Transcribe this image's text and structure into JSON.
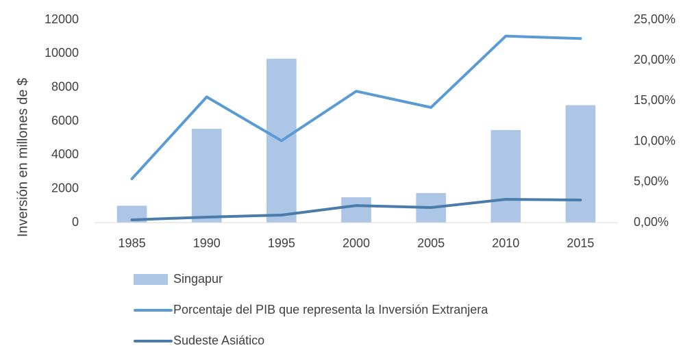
{
  "chart_data": {
    "type": "bar",
    "y_label": "Inversión en millones de $",
    "categories": [
      "1985",
      "1990",
      "1995",
      "2000",
      "2005",
      "2010",
      "2015"
    ],
    "series": [
      {
        "name": "Singapur",
        "type": "bar",
        "axis": "y",
        "color": "#adc6e6",
        "values": [
          1000,
          5550,
          9700,
          1500,
          1750,
          5480,
          6950
        ]
      },
      {
        "name": "Porcentaje del PIB que representa la Inversión Extranjera",
        "type": "line",
        "axis": "y2",
        "color": "#5b9bd5",
        "values": [
          5.4,
          15.5,
          10.1,
          16.2,
          14.2,
          23.0,
          22.7
        ]
      },
      {
        "name": "Sudeste Asiático",
        "type": "line",
        "axis": "y2",
        "color": "#4a7cab",
        "values": [
          0.34,
          0.68,
          0.93,
          2.1,
          1.86,
          2.87,
          2.79
        ]
      }
    ],
    "ylim": [
      0,
      12000
    ],
    "yticks": [
      0,
      2000,
      4000,
      6000,
      8000,
      10000,
      12000
    ],
    "y2lim": [
      0,
      25
    ],
    "y2ticks": [
      {
        "value": 0,
        "label": "0,00%"
      },
      {
        "value": 5,
        "label": "5,00%"
      },
      {
        "value": 10,
        "label": "10,00%"
      },
      {
        "value": 15,
        "label": "15,00%"
      },
      {
        "value": 20,
        "label": "20,00%"
      },
      {
        "value": 25,
        "label": "25,00%"
      }
    ],
    "grid": false,
    "legend": "bottom"
  }
}
